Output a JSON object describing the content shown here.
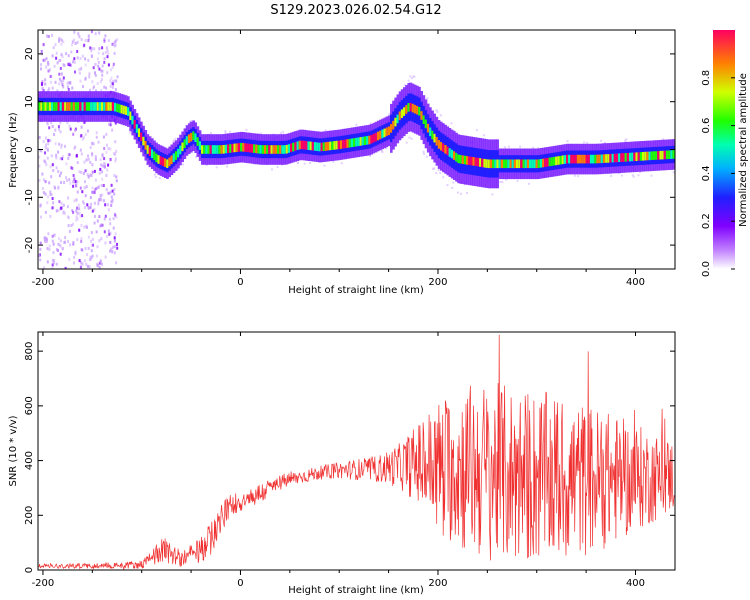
{
  "title": "S129.2023.026.02.54.G12",
  "chart_data": [
    {
      "type": "heatmap",
      "subtype": "spectrogram",
      "xlabel": "Height of straight line (km)",
      "ylabel": "Frequency (Hz)",
      "xlim": [
        -205,
        440
      ],
      "ylim": [
        -25,
        25
      ],
      "xticks": [
        -200,
        0,
        200,
        400
      ],
      "yticks": [
        -20,
        -10,
        0,
        10,
        20
      ],
      "xtick_labels": [
        "-200",
        "0",
        "200",
        "400"
      ],
      "ytick_labels": [
        "-20",
        "-10",
        "0",
        "10",
        "20"
      ],
      "colorbar": {
        "label": "Normalized spectral amplitude",
        "range": [
          0,
          1
        ],
        "ticks": [
          "0.0",
          "0.2",
          "0.4",
          "0.6",
          "0.8"
        ],
        "colormap": [
          "#ffffff",
          "#a000ff",
          "#2000ff",
          "#00a0ff",
          "#00ffb0",
          "#20ff00",
          "#c0ff00",
          "#ff8000",
          "#ff0060"
        ]
      },
      "ridge": {
        "x": [
          -205,
          -180,
          -150,
          -130,
          -115,
          -105,
          -95,
          -85,
          -75,
          -65,
          -55,
          -48,
          -40,
          -30,
          -20,
          0,
          20,
          45,
          60,
          80,
          100,
          130,
          150,
          160,
          170,
          180,
          190,
          200,
          220,
          250,
          270,
          300,
          330,
          360,
          400,
          440
        ],
        "y": [
          9,
          9,
          9,
          9,
          8,
          4,
          0,
          -2,
          -3,
          -1,
          2,
          3,
          0,
          0,
          0,
          0.5,
          0,
          0,
          1,
          0.5,
          1,
          2,
          4,
          7,
          9,
          8,
          4,
          1,
          -2,
          -3,
          -3,
          -3,
          -2,
          -2,
          -1.5,
          -1
        ]
      },
      "noise_x_range": [
        -205,
        -125
      ]
    },
    {
      "type": "line",
      "xlabel": "Height of straight line (km)",
      "ylabel": "SNR (10 * v/v)",
      "xlim": [
        -205,
        440
      ],
      "ylim": [
        0,
        870
      ],
      "xticks": [
        -200,
        0,
        200,
        400
      ],
      "yticks": [
        0,
        200,
        400,
        600,
        800
      ],
      "xtick_labels": [
        "-200",
        "0",
        "200",
        "400"
      ],
      "ytick_labels": [
        "0",
        "200",
        "400",
        "600",
        "800"
      ],
      "color": "#f03030",
      "envelope": {
        "x": [
          -205,
          -150,
          -100,
          -90,
          -80,
          -70,
          -60,
          -40,
          -30,
          -20,
          -10,
          0,
          20,
          40,
          60,
          80,
          100,
          140,
          160,
          180,
          200,
          230,
          250,
          270,
          300,
          330,
          360,
          400,
          440
        ],
        "center": [
          15,
          15,
          20,
          40,
          80,
          60,
          40,
          70,
          120,
          180,
          240,
          250,
          280,
          320,
          340,
          355,
          365,
          370,
          380,
          390,
          380,
          370,
          360,
          350,
          340,
          330,
          330,
          335,
          345
        ],
        "amplitude": [
          8,
          10,
          15,
          30,
          50,
          40,
          30,
          50,
          60,
          60,
          40,
          40,
          40,
          30,
          25,
          25,
          30,
          50,
          80,
          150,
          250,
          320,
          330,
          330,
          320,
          300,
          270,
          200,
          130
        ]
      }
    }
  ]
}
